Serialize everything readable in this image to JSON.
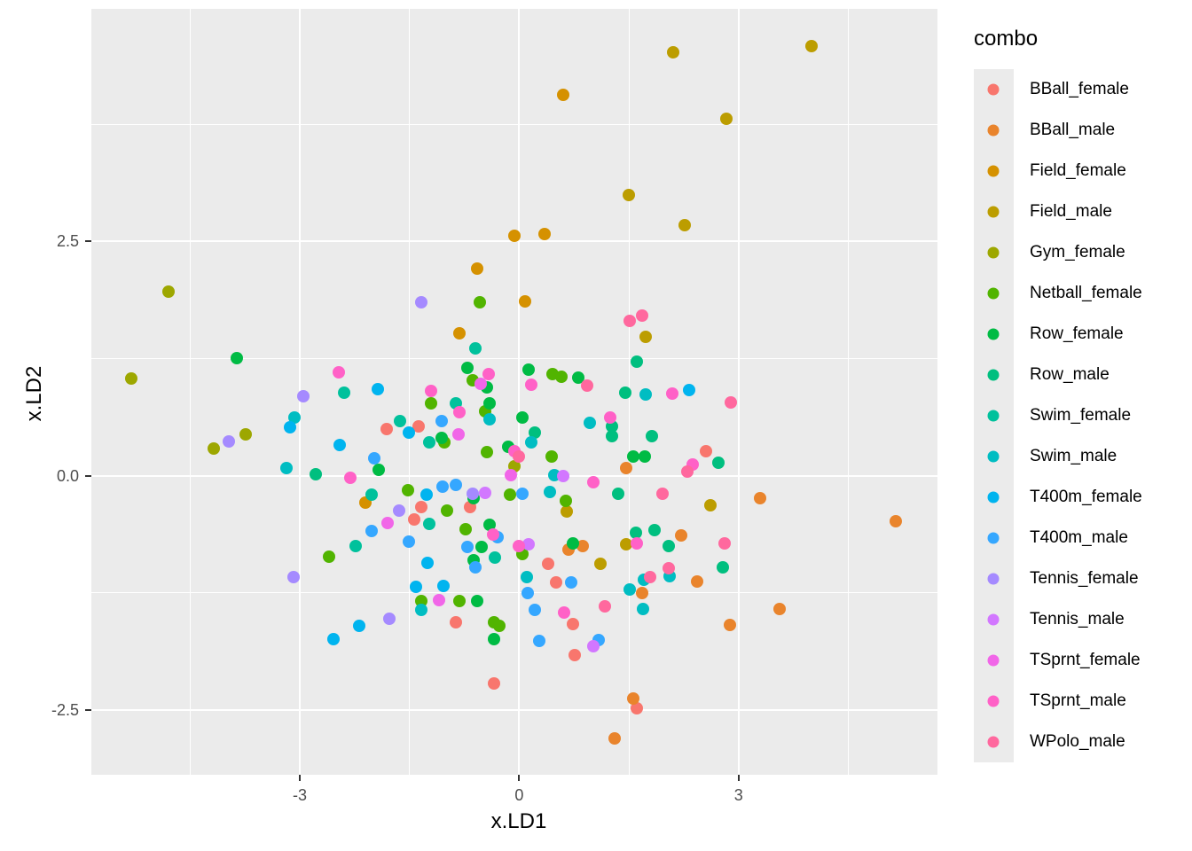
{
  "axes": {
    "x_title": "x.LD1",
    "y_title": "x.LD2"
  },
  "legend": {
    "title": "combo"
  },
  "chart_data": {
    "type": "scatter",
    "title": "",
    "xlabel": "x.LD1",
    "ylabel": "x.LD2",
    "xlim": [
      -5.85,
      5.72
    ],
    "ylim": [
      -3.19,
      4.98
    ],
    "grid": "on",
    "legend_position": "right",
    "legend_title": "combo",
    "x_ticks": {
      "values": [
        -3,
        0,
        3
      ],
      "labels": [
        "-3",
        "0",
        "3"
      ]
    },
    "y_ticks": {
      "values": [
        2.5,
        0,
        -2.5
      ],
      "labels": [
        "2.5",
        "0.0",
        "-2.5"
      ]
    },
    "x_minor": [
      -4.5,
      -1.5,
      1.5,
      4.5
    ],
    "y_minor": [
      3.75,
      1.25,
      -1.25
    ],
    "panel_bg": "#EBEBEB",
    "gridline_color": "#FFFFFF",
    "tick_text_color": "#4D4D4D",
    "series": [
      {
        "name": "BBall_female",
        "color": "#F8766D",
        "points": [
          [
            -1.81,
            0.5
          ],
          [
            -1.38,
            0.53
          ],
          [
            -1.34,
            -0.33
          ],
          [
            -0.67,
            -0.33
          ],
          [
            2.56,
            0.26
          ],
          [
            -1.44,
            -0.47
          ],
          [
            -0.87,
            -1.56
          ],
          [
            -0.35,
            -2.22
          ],
          [
            0.39,
            -0.94
          ],
          [
            0.5,
            -1.14
          ],
          [
            0.74,
            -1.58
          ],
          [
            0.76,
            -1.91
          ],
          [
            1.61,
            -2.48
          ]
        ]
      },
      {
        "name": "BBall_male",
        "color": "#E9842C",
        "points": [
          [
            1.46,
            0.08
          ],
          [
            3.29,
            -0.24
          ],
          [
            5.15,
            -0.49
          ],
          [
            0.87,
            -0.75
          ],
          [
            0.68,
            -0.79
          ],
          [
            2.21,
            -0.64
          ],
          [
            2.43,
            -1.13
          ],
          [
            1.68,
            -1.25
          ],
          [
            2.88,
            -1.59
          ],
          [
            1.56,
            -2.38
          ],
          [
            1.31,
            -2.8
          ],
          [
            3.56,
            -1.42
          ]
        ]
      },
      {
        "name": "Field_female",
        "color": "#D59100",
        "points": [
          [
            -0.07,
            2.56
          ],
          [
            0.35,
            2.58
          ],
          [
            -0.58,
            2.21
          ],
          [
            0.6,
            4.06
          ],
          [
            -0.82,
            1.52
          ],
          [
            -2.1,
            -0.29
          ],
          [
            0.08,
            1.86
          ]
        ]
      },
      {
        "name": "Field_male",
        "color": "#BC9D00",
        "points": [
          [
            2.1,
            4.52
          ],
          [
            4.0,
            4.58
          ],
          [
            2.83,
            3.81
          ],
          [
            1.5,
            2.99
          ],
          [
            2.26,
            2.67
          ],
          [
            1.73,
            1.48
          ],
          [
            0.65,
            -0.38
          ],
          [
            2.62,
            -0.32
          ],
          [
            1.11,
            -0.94
          ],
          [
            1.46,
            -0.73
          ]
        ]
      },
      {
        "name": "Gym_female",
        "color": "#9DA700",
        "points": [
          [
            -4.8,
            1.96
          ],
          [
            -5.3,
            1.04
          ],
          [
            -3.74,
            0.44
          ],
          [
            -4.18,
            0.29
          ],
          [
            -0.07,
            0.1
          ]
        ]
      },
      {
        "name": "Netball_female",
        "color": "#51B400",
        "points": [
          [
            -0.54,
            1.85
          ],
          [
            -0.64,
            1.02
          ],
          [
            -1.2,
            0.77
          ],
          [
            -0.47,
            0.69
          ],
          [
            -1.02,
            0.36
          ],
          [
            -1.52,
            -0.15
          ],
          [
            -0.99,
            -0.37
          ],
          [
            -0.13,
            -0.2
          ],
          [
            -0.44,
            0.25
          ],
          [
            0.46,
            1.08
          ],
          [
            0.58,
            1.06
          ],
          [
            0.44,
            0.2
          ],
          [
            0.64,
            -0.27
          ],
          [
            -0.73,
            -0.57
          ],
          [
            -2.6,
            -0.86
          ],
          [
            -1.34,
            -1.34
          ],
          [
            -0.82,
            -1.34
          ],
          [
            -0.34,
            -1.56
          ],
          [
            -0.27,
            -1.6
          ],
          [
            0.05,
            -0.84
          ]
        ]
      },
      {
        "name": "Row_female",
        "color": "#00BB44",
        "points": [
          [
            -3.86,
            1.25
          ],
          [
            -0.71,
            1.15
          ],
          [
            -0.44,
            0.94
          ],
          [
            -0.4,
            0.77
          ],
          [
            -1.06,
            0.4
          ],
          [
            -1.92,
            0.06
          ],
          [
            -0.62,
            -0.24
          ],
          [
            -0.15,
            0.31
          ],
          [
            0.13,
            1.13
          ],
          [
            0.81,
            1.05
          ],
          [
            0.05,
            0.62
          ],
          [
            1.56,
            0.2
          ],
          [
            1.72,
            0.2
          ],
          [
            -0.41,
            -0.52
          ],
          [
            -0.51,
            -0.76
          ],
          [
            -0.62,
            -0.9
          ],
          [
            -0.58,
            -1.34
          ],
          [
            -0.35,
            -1.74
          ],
          [
            0.74,
            -0.72
          ]
        ]
      },
      {
        "name": "Row_male",
        "color": "#00BF7F",
        "points": [
          [
            -2.78,
            0.02
          ],
          [
            1.61,
            1.22
          ],
          [
            1.45,
            0.89
          ],
          [
            1.27,
            0.53
          ],
          [
            0.22,
            0.46
          ],
          [
            1.27,
            0.42
          ],
          [
            1.81,
            0.42
          ],
          [
            2.72,
            0.14
          ],
          [
            1.35,
            -0.19
          ],
          [
            1.6,
            -0.61
          ],
          [
            1.85,
            -0.58
          ],
          [
            2.04,
            -0.75
          ],
          [
            2.78,
            -0.98
          ]
        ]
      },
      {
        "name": "Swim_female",
        "color": "#00C19C",
        "points": [
          [
            -0.6,
            1.36
          ],
          [
            -2.39,
            0.89
          ],
          [
            -0.87,
            0.77
          ],
          [
            -1.63,
            0.58
          ],
          [
            -1.23,
            0.36
          ],
          [
            -2.02,
            -0.2
          ],
          [
            -1.23,
            -0.51
          ],
          [
            -2.24,
            -0.75
          ],
          [
            -0.33,
            -0.87
          ]
        ]
      },
      {
        "name": "Swim_male",
        "color": "#00BDC2",
        "points": [
          [
            -3.07,
            0.62
          ],
          [
            -3.18,
            0.08
          ],
          [
            -0.4,
            0.6
          ],
          [
            1.73,
            0.87
          ],
          [
            0.97,
            0.56
          ],
          [
            0.17,
            0.36
          ],
          [
            0.48,
            0.01
          ],
          [
            0.42,
            -0.17
          ],
          [
            -1.34,
            -1.43
          ],
          [
            0.11,
            -1.08
          ],
          [
            1.7,
            -1.11
          ],
          [
            2.06,
            -1.07
          ],
          [
            1.51,
            -1.21
          ],
          [
            1.69,
            -1.42
          ]
        ]
      },
      {
        "name": "T400m_female",
        "color": "#00B4EF",
        "points": [
          [
            -3.13,
            0.52
          ],
          [
            -1.93,
            0.92
          ],
          [
            -1.51,
            0.46
          ],
          [
            -2.45,
            0.33
          ],
          [
            -1.27,
            -0.2
          ],
          [
            2.33,
            0.91
          ],
          [
            -1.25,
            -0.93
          ],
          [
            -1.41,
            -1.19
          ],
          [
            -1.04,
            -1.18
          ],
          [
            -2.19,
            -1.6
          ],
          [
            -2.54,
            -1.74
          ]
        ]
      },
      {
        "name": "T400m_male",
        "color": "#35A7FF",
        "points": [
          [
            -1.06,
            0.58
          ],
          [
            -1.98,
            0.19
          ],
          [
            -1.05,
            -0.12
          ],
          [
            -0.87,
            -0.1
          ],
          [
            0.04,
            -0.19
          ],
          [
            -0.29,
            -0.66
          ],
          [
            -2.02,
            -0.59
          ],
          [
            -1.51,
            -0.7
          ],
          [
            -0.71,
            -0.76
          ],
          [
            -0.6,
            -0.98
          ],
          [
            0.71,
            -1.14
          ],
          [
            0.12,
            -1.25
          ],
          [
            0.22,
            -1.43
          ],
          [
            0.27,
            -1.76
          ],
          [
            1.09,
            -1.75
          ]
        ]
      },
      {
        "name": "Tennis_female",
        "color": "#A58AFF",
        "points": [
          [
            -3.97,
            0.37
          ],
          [
            -1.34,
            1.85
          ],
          [
            -2.95,
            0.85
          ],
          [
            -1.64,
            -0.37
          ],
          [
            -0.63,
            -0.19
          ],
          [
            -3.08,
            -1.08
          ],
          [
            -1.78,
            -1.53
          ]
        ]
      },
      {
        "name": "Tennis_male",
        "color": "#D277FF",
        "points": [
          [
            -0.47,
            -0.18
          ],
          [
            0.6,
            0.0
          ],
          [
            0.13,
            -0.73
          ],
          [
            1.02,
            -1.82
          ]
        ]
      },
      {
        "name": "TSprnt_female",
        "color": "#F166E8",
        "points": [
          [
            -0.52,
            0.98
          ],
          [
            -0.83,
            0.44
          ],
          [
            -0.11,
            0.01
          ],
          [
            -1.8,
            -0.5
          ],
          [
            -1.1,
            -1.33
          ]
        ]
      },
      {
        "name": "TSprnt_male",
        "color": "#FF61C7",
        "points": [
          [
            -2.47,
            1.1
          ],
          [
            -0.42,
            1.08
          ],
          [
            -1.21,
            0.9
          ],
          [
            -0.82,
            0.68
          ],
          [
            -2.31,
            -0.02
          ],
          [
            0.17,
            0.97
          ],
          [
            2.09,
            0.88
          ],
          [
            1.25,
            0.62
          ],
          [
            2.37,
            0.12
          ],
          [
            1.02,
            -0.07
          ],
          [
            -0.07,
            0.26
          ],
          [
            0.0,
            -0.75
          ],
          [
            1.61,
            -0.72
          ],
          [
            -0.36,
            -0.63
          ],
          [
            0.62,
            -1.46
          ]
        ]
      },
      {
        "name": "WPolo_male",
        "color": "#FF689E",
        "points": [
          [
            1.51,
            1.65
          ],
          [
            1.68,
            1.71
          ],
          [
            0.93,
            0.96
          ],
          [
            2.9,
            0.78
          ],
          [
            2.3,
            0.04
          ],
          [
            0.0,
            0.2
          ],
          [
            1.96,
            -0.19
          ],
          [
            2.04,
            -0.99
          ],
          [
            1.79,
            -1.08
          ],
          [
            2.81,
            -0.72
          ],
          [
            1.17,
            -1.39
          ]
        ]
      }
    ]
  }
}
